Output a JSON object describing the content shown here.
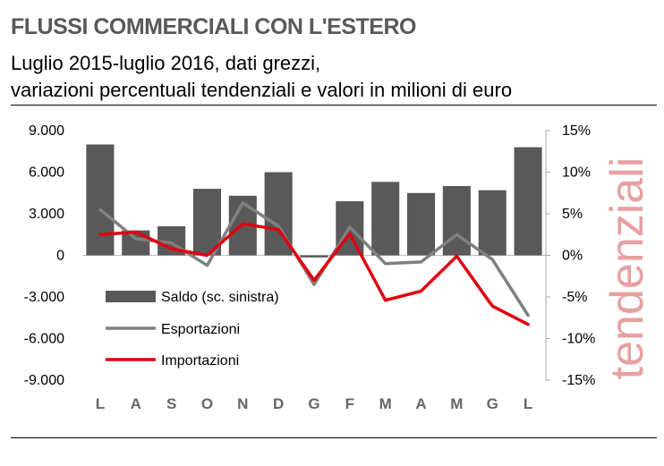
{
  "header": {
    "title": "FLUSSI COMMERCIALI CON L'ESTERO",
    "subtitle_line1": "Luglio 2015-luglio 2016, dati grezzi,",
    "subtitle_line2": "variazioni percentuali tendenziali e valori in milioni di euro"
  },
  "side_label": "tendenziali",
  "colors": {
    "bars": "#595959",
    "export_line": "#808080",
    "import_line": "#e0000f"
  },
  "chart_data": {
    "type": "bar",
    "categories": [
      "L",
      "A",
      "S",
      "O",
      "N",
      "D",
      "G",
      "F",
      "M",
      "A",
      "M",
      "G",
      "L"
    ],
    "left_axis": {
      "ylim": [
        -9000,
        9000
      ],
      "ticks": [
        "9.000",
        "6.000",
        "3.000",
        "0",
        "-3.000",
        "-6.000",
        "-9.000"
      ]
    },
    "right_axis": {
      "ylim": [
        -15,
        15
      ],
      "ticks": [
        "15%",
        "10%",
        "5%",
        "0%",
        "-5%",
        "-10%",
        "-15%"
      ]
    },
    "series": [
      {
        "name": "Saldo (sc. sinistra)",
        "type": "bar",
        "axis": "left",
        "values": [
          8000,
          1800,
          2100,
          4800,
          4300,
          6000,
          -150,
          3900,
          5300,
          4500,
          5000,
          4700,
          7800
        ]
      },
      {
        "name": "Esportazioni",
        "type": "line",
        "axis": "right",
        "values": [
          5.5,
          2.0,
          1.5,
          -1.2,
          6.3,
          3.5,
          -3.5,
          3.4,
          -1.0,
          -0.8,
          2.5,
          -0.5,
          -7.2
        ]
      },
      {
        "name": "Importazioni",
        "type": "line",
        "axis": "right",
        "values": [
          2.5,
          2.8,
          0.8,
          0.0,
          3.8,
          3.1,
          -3.0,
          2.6,
          -5.4,
          -4.3,
          -0.1,
          -6.1,
          -8.3
        ]
      }
    ]
  }
}
